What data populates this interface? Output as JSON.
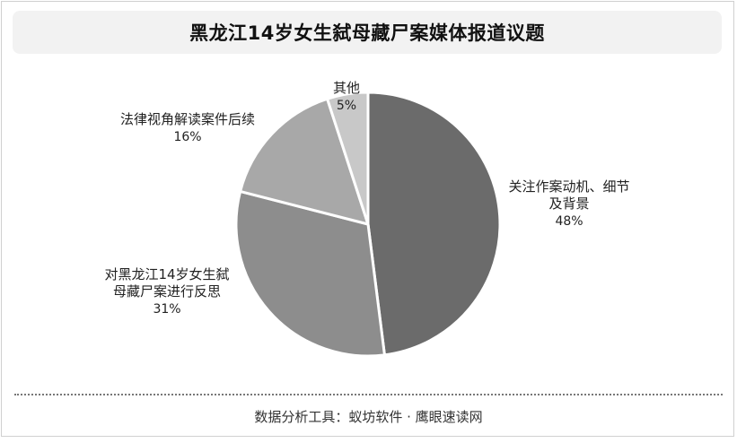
{
  "title": "黑龙江14岁女生弑母藏尸案媒体报道议题",
  "footer": "数据分析工具：蚁坊软件 · 鹰眼速读网",
  "chart_data": {
    "type": "pie",
    "title": "黑龙江14岁女生弑母藏尸案媒体报道议题",
    "slices": [
      {
        "label_lines": [
          "关注作案动机、细节",
          "及背景"
        ],
        "value": 48,
        "value_label": "48%",
        "color": "#6b6b6b"
      },
      {
        "label_lines": [
          "对黑龙江14岁女生弑",
          "母藏尸案进行反思"
        ],
        "value": 31,
        "value_label": "31%",
        "color": "#8d8d8d"
      },
      {
        "label_lines": [
          "法律视角解读案件后续"
        ],
        "value": 16,
        "value_label": "16%",
        "color": "#a8a8a8"
      },
      {
        "label_lines": [
          "其他"
        ],
        "value": 5,
        "value_label": "5%",
        "color": "#c8c8c8"
      }
    ],
    "start_angle_deg": 0,
    "direction": "clockwise",
    "slice_border_color": "#ffffff",
    "legend": "none"
  }
}
